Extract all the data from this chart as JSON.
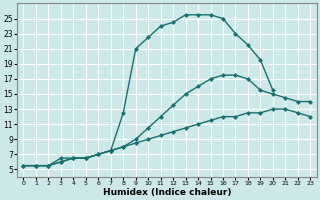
{
  "xlabel": "Humidex (Indice chaleur)",
  "ylabel": "",
  "bg_color": "#cce8e8",
  "grid_color": "#ffffff",
  "line_color": "#1a7070",
  "xlim": [
    -0.5,
    23.5
  ],
  "ylim": [
    4.0,
    27.0
  ],
  "xticks": [
    0,
    1,
    2,
    3,
    4,
    5,
    6,
    7,
    8,
    9,
    10,
    11,
    12,
    13,
    14,
    15,
    16,
    17,
    18,
    19,
    20,
    21,
    22,
    23
  ],
  "yticks": [
    5,
    7,
    9,
    11,
    13,
    15,
    17,
    19,
    21,
    23,
    25
  ],
  "series": [
    {
      "x": [
        0,
        1,
        2,
        3,
        4,
        5,
        6,
        7,
        8,
        9,
        10,
        11,
        12,
        13,
        14,
        15,
        16,
        17,
        18,
        19,
        20
      ],
      "y": [
        5.5,
        5.5,
        5.5,
        6.5,
        6.5,
        6.5,
        7.0,
        7.5,
        12.5,
        21.0,
        22.5,
        24.0,
        24.5,
        25.5,
        25.5,
        25.5,
        25.0,
        23.0,
        21.5,
        19.5,
        15.5
      ],
      "marker": "D",
      "markersize": 2.0,
      "linewidth": 1.0
    },
    {
      "x": [
        0,
        1,
        2,
        3,
        4,
        5,
        6,
        7,
        8,
        9,
        10,
        11,
        12,
        13,
        14,
        15,
        16,
        17,
        18,
        19,
        20,
        21,
        22,
        23
      ],
      "y": [
        5.5,
        5.5,
        5.5,
        6.0,
        6.5,
        6.5,
        7.0,
        7.5,
        8.0,
        9.0,
        10.5,
        12.0,
        13.5,
        15.0,
        16.0,
        17.0,
        17.5,
        17.5,
        17.0,
        15.5,
        15.0,
        14.5,
        14.0,
        14.0
      ],
      "marker": "D",
      "markersize": 2.0,
      "linewidth": 1.0
    },
    {
      "x": [
        0,
        1,
        2,
        3,
        4,
        5,
        6,
        7,
        8,
        9,
        10,
        11,
        12,
        13,
        14,
        15,
        16,
        17,
        18,
        19,
        20,
        21,
        22,
        23
      ],
      "y": [
        5.5,
        5.5,
        5.5,
        6.0,
        6.5,
        6.5,
        7.0,
        7.5,
        8.0,
        8.5,
        9.0,
        9.5,
        10.0,
        10.5,
        11.0,
        11.5,
        12.0,
        12.0,
        12.5,
        12.5,
        13.0,
        13.0,
        12.5,
        12.0
      ],
      "marker": "D",
      "markersize": 2.0,
      "linewidth": 1.0
    }
  ]
}
